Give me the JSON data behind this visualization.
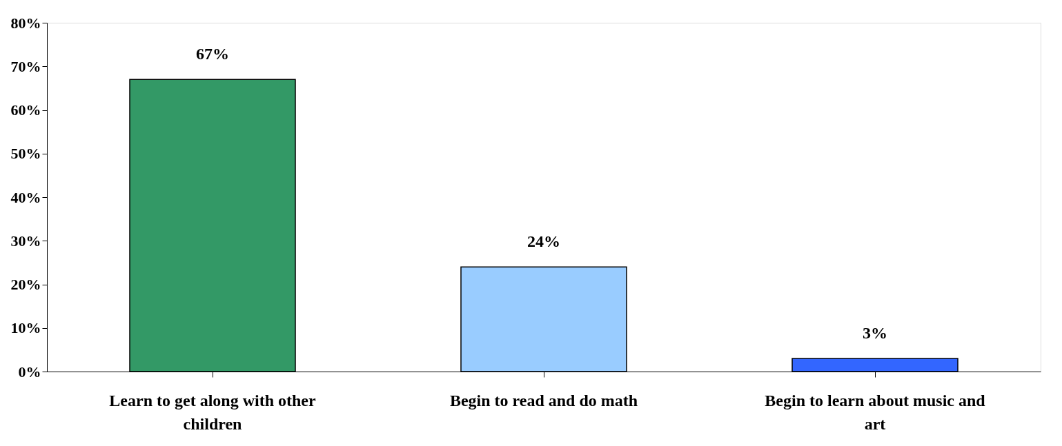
{
  "chart_data": {
    "type": "bar",
    "categories": [
      "Learn to get along with other children",
      "Begin to read and do math",
      "Begin to learn about music and art"
    ],
    "values": [
      67,
      24,
      3
    ],
    "colors": [
      "#339966",
      "#99ccff",
      "#3366ff"
    ],
    "value_labels": [
      "67%",
      "24%",
      "3%"
    ],
    "ylim": [
      0,
      80
    ],
    "yticks": [
      {
        "value": 0,
        "label": "0%"
      },
      {
        "value": 10,
        "label": "10%"
      },
      {
        "value": 20,
        "label": "20%"
      },
      {
        "value": 30,
        "label": "30%"
      },
      {
        "value": 40,
        "label": "40%"
      },
      {
        "value": 50,
        "label": "50%"
      },
      {
        "value": 60,
        "label": "60%"
      },
      {
        "value": 70,
        "label": "70%"
      },
      {
        "value": 80,
        "label": "80%"
      }
    ],
    "grid": false
  }
}
